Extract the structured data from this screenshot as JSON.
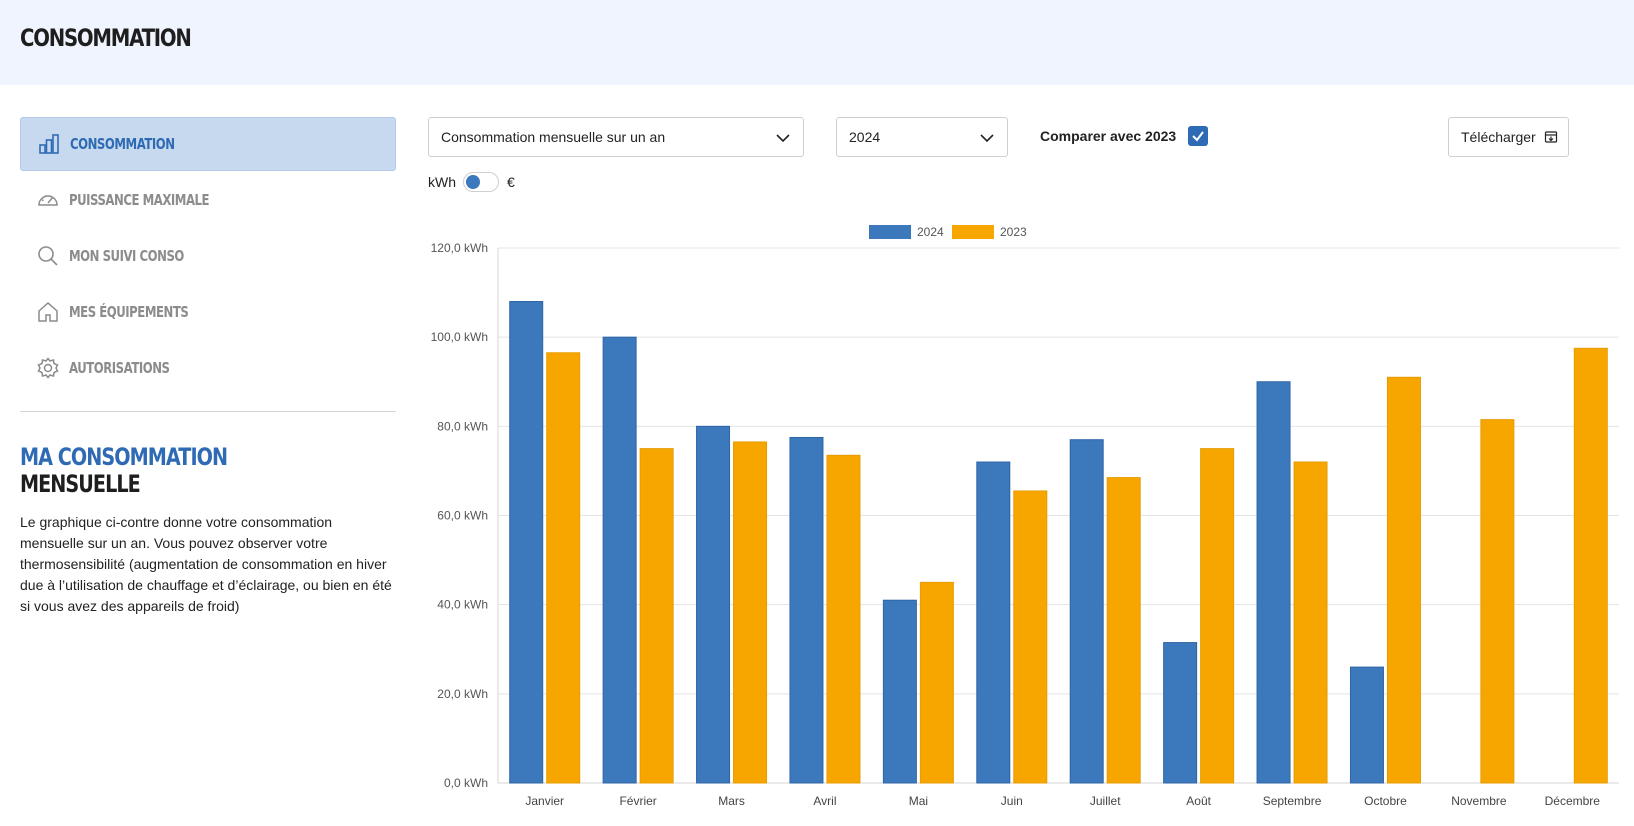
{
  "header": {
    "title": "CONSOMMATION"
  },
  "sidebar": {
    "items": [
      {
        "label": "CONSOMMATION",
        "icon": "bar-chart-icon",
        "active": true
      },
      {
        "label": "PUISSANCE MAXIMALE",
        "icon": "gauge-icon",
        "active": false
      },
      {
        "label": "MON SUIVI CONSO",
        "icon": "search-icon",
        "active": false
      },
      {
        "label": "MES ÉQUIPEMENTS",
        "icon": "home-icon",
        "active": false
      },
      {
        "label": "AUTORISATIONS",
        "icon": "gear-icon",
        "active": false
      }
    ]
  },
  "info": {
    "title_line1": "MA CONSOMMATION",
    "title_line2": "MENSUELLE",
    "text": "Le graphique ci-contre donne votre consommation mensuelle sur un an. Vous pouvez observer votre thermosensibilité (augmentation de consommation en hiver due à l’utilisation de chauffage et d’éclairage, ou bien en été si vous avez des appareils de froid)"
  },
  "controls": {
    "period_select": "Consommation mensuelle sur un an",
    "year_select": "2024",
    "compare_label": "Comparer avec 2023",
    "compare_checked": true,
    "download_label": "Télécharger",
    "unit_left": "kWh",
    "unit_right": "€",
    "unit_selected": "kWh"
  },
  "colors": {
    "primary": "#3c78bc",
    "secondary": "#f7a600",
    "header_bg": "#eff4fe",
    "active_nav_bg": "#c7d9ef"
  },
  "chart_data": {
    "type": "bar",
    "categories": [
      "Janvier",
      "Février",
      "Mars",
      "Avril",
      "Mai",
      "Juin",
      "Juillet",
      "Août",
      "Septembre",
      "Octobre",
      "Novembre",
      "Décembre"
    ],
    "series": [
      {
        "name": "2024",
        "color": "#3c78bc",
        "values": [
          108,
          100,
          80,
          77.5,
          41,
          72,
          77,
          31.5,
          90,
          26,
          null,
          null
        ]
      },
      {
        "name": "2023",
        "color": "#f7a600",
        "values": [
          96.5,
          75,
          76.5,
          73.5,
          45,
          65.5,
          68.5,
          75,
          72,
          91,
          81.5,
          97.5
        ]
      }
    ],
    "ylim": [
      0,
      120
    ],
    "yticks": [
      "0,0 kWh",
      "20,0 kWh",
      "40,0 kWh",
      "60,0 kWh",
      "80,0 kWh",
      "100,0 kWh",
      "120,0 kWh"
    ],
    "legend_position": "top-center",
    "grid": true
  }
}
